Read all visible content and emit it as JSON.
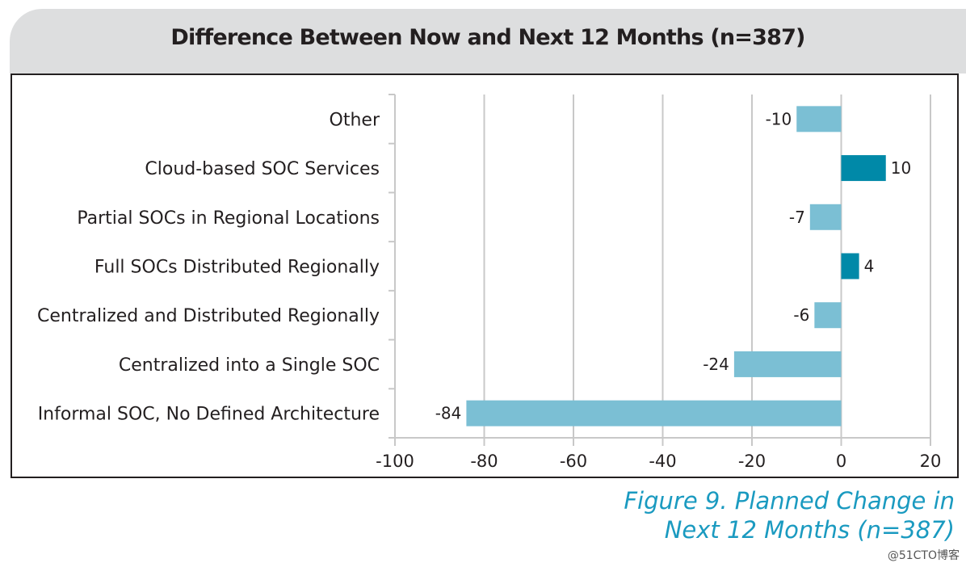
{
  "chart_data": {
    "type": "bar",
    "orientation": "horizontal",
    "title": "Difference Between Now and Next 12 Months (n=387)",
    "categories": [
      "Other",
      "Cloud-based SOC Services",
      "Partial SOCs in Regional Locations",
      "Full SOCs Distributed Regionally",
      "Centralized and Distributed Regionally",
      "Centralized into a Single SOC",
      "Informal SOC, No Defined Architecture"
    ],
    "values": [
      -10,
      10,
      -7,
      4,
      -6,
      -24,
      -84
    ],
    "data_labels": [
      "-10",
      "10",
      "-7",
      "4",
      "-6",
      "-24",
      "-84"
    ],
    "xlim": [
      -100,
      20
    ],
    "xticks": [
      "-100",
      "-80",
      "-60",
      "-40",
      "-20",
      "0",
      "20"
    ],
    "xlabel": "",
    "ylabel": "",
    "grid": "vertical",
    "colors": {
      "negative": "#7bbfd4",
      "positive": "#0089a8"
    }
  },
  "caption": {
    "line1": "Figure 9. Planned Change in",
    "line2": "Next 12 Months (n=387)"
  },
  "watermark": "@51CTO博客"
}
